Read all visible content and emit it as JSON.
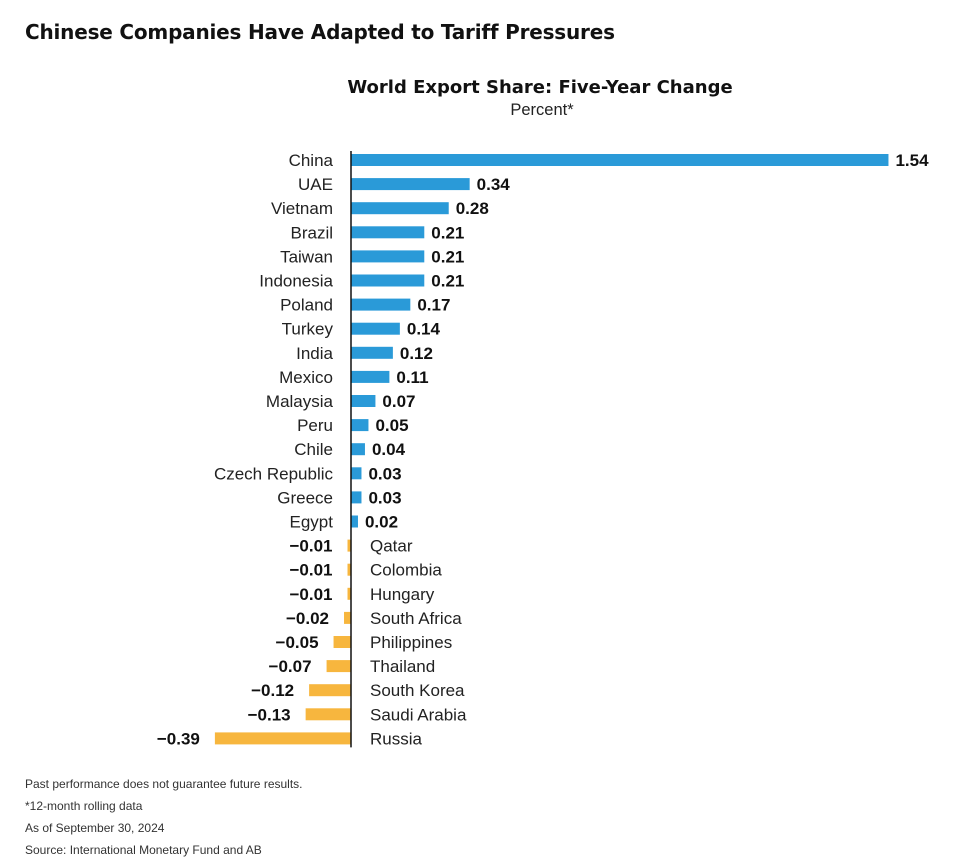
{
  "header": {
    "title": "Chinese Companies Have Adapted to Tariff Pressures"
  },
  "chart_data": {
    "type": "bar",
    "orientation": "horizontal",
    "title": "World Export Share: Five-Year Change",
    "subtitle": "Percent*",
    "categories": [
      "China",
      "UAE",
      "Vietnam",
      "Brazil",
      "Taiwan",
      "Indonesia",
      "Poland",
      "Turkey",
      "India",
      "Mexico",
      "Malaysia",
      "Peru",
      "Chile",
      "Czech Republic",
      "Greece",
      "Egypt",
      "Qatar",
      "Colombia",
      "Hungary",
      "South Africa",
      "Philippines",
      "Thailand",
      "South Korea",
      "Saudi Arabia",
      "Russia"
    ],
    "values": [
      1.54,
      0.34,
      0.28,
      0.21,
      0.21,
      0.21,
      0.17,
      0.14,
      0.12,
      0.11,
      0.07,
      0.05,
      0.04,
      0.03,
      0.03,
      0.02,
      -0.01,
      -0.01,
      -0.01,
      -0.02,
      -0.05,
      -0.07,
      -0.12,
      -0.13,
      -0.39
    ],
    "value_labels": [
      "1.54",
      "0.34",
      "0.28",
      "0.21",
      "0.21",
      "0.21",
      "0.17",
      "0.14",
      "0.12",
      "0.11",
      "0.07",
      "0.05",
      "0.04",
      "0.03",
      "0.03",
      "0.02",
      "−0.01",
      "−0.01",
      "−0.01",
      "−0.02",
      "−0.05",
      "−0.07",
      "−0.12",
      "−0.13",
      "−0.39"
    ],
    "colors": {
      "positive": "#2a9ad8",
      "negative": "#f7b63e",
      "axis": "#111111"
    },
    "grid": false
  },
  "footnotes": [
    "Past performance does not guarantee future results.",
    "*12-month rolling data",
    "As of September 30, 2024",
    "Source: International Monetary Fund and AB"
  ]
}
